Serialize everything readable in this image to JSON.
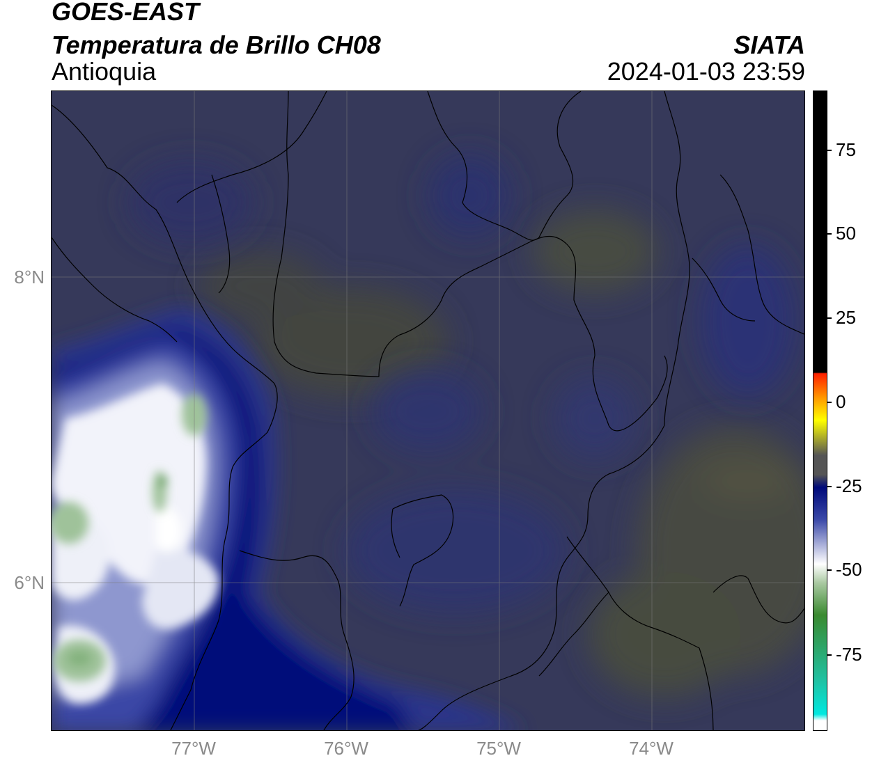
{
  "header": {
    "title": "GOES-EAST",
    "subtitle": "Temperatura de Brillo CH08",
    "region": "Antioquia",
    "organization": "SIATA",
    "datetime": "2024-01-03 23:59"
  },
  "map_axes": {
    "lat_labels": [
      "8°N",
      "6°N"
    ],
    "lon_labels": [
      "77°W",
      "76°W",
      "75°W",
      "74°W"
    ]
  },
  "colorbar": {
    "tick_labels": [
      "75",
      "50",
      "25",
      "0",
      "-25",
      "-50",
      "-75"
    ],
    "colors": {
      "black_top": "#000000",
      "red": "#ff2000",
      "orange": "#ff9900",
      "yellow": "#ffff00",
      "gray": "#555555",
      "navy": "#000a7a",
      "blue": "#3a48a8",
      "white": "#ffffff",
      "light_green": "#a8c8a0",
      "green": "#3a8a30",
      "teal": "#20c0a0",
      "cyan": "#00e8e0"
    }
  },
  "map_colors": {
    "background": "#36395a",
    "olive_patch": "#4a4d3e",
    "navy_storm": "#000a78",
    "mid_blue": "#3a47a6",
    "light_blue": "#8e97cf",
    "white_core": "#f4f5fb",
    "pale_green": "#9fc29a",
    "green_core": "#6fa868",
    "borders": "#000000",
    "grid": "#7a7a7a"
  }
}
